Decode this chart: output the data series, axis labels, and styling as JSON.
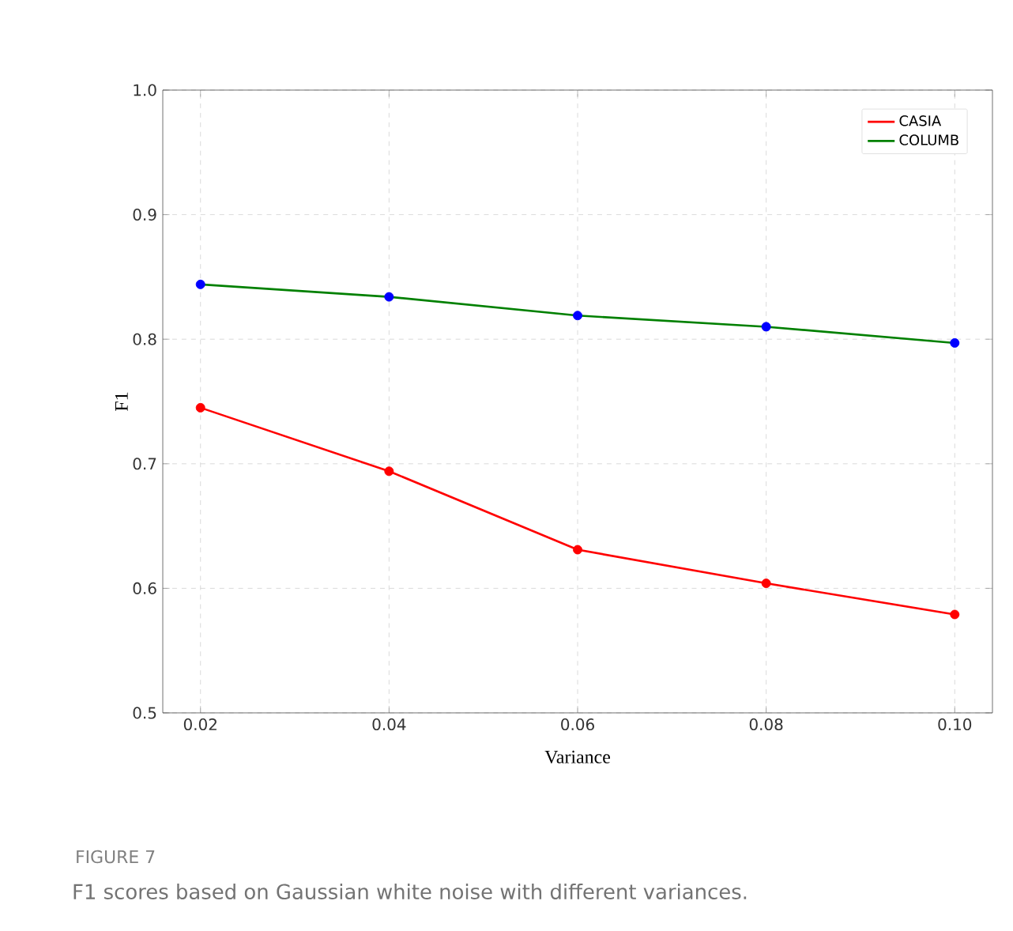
{
  "chart_data": {
    "type": "line",
    "xlabel": "Variance",
    "ylabel": "F1",
    "title": "FIGURE 7",
    "subtitle": "F1 scores based on Gaussian white noise with different variances.",
    "x": [
      0.02,
      0.04,
      0.06,
      0.08,
      0.1
    ],
    "series": [
      {
        "name": "CASIA",
        "color": "#ff0000",
        "values": [
          0.745,
          0.694,
          0.631,
          0.604,
          0.579
        ]
      },
      {
        "name": "COLUMB",
        "color": "#008000",
        "colors": [
          "#0000ff",
          "#0000ff",
          "#0000ff",
          "#0000ff",
          "#0000ff"
        ],
        "values": [
          0.844,
          0.834,
          0.819,
          0.81,
          0.797
        ]
      }
    ],
    "xlim": [
      0.016,
      0.104
    ],
    "ylim": [
      0.5,
      1.0
    ],
    "xticks": [
      0.02,
      0.04,
      0.06,
      0.08,
      {
        "value": 0.1,
        "label": "0.10"
      }
    ],
    "yticks": [
      0.5,
      0.6,
      0.7,
      0.8,
      0.9,
      {
        "value": 1.0,
        "label": "1.0"
      }
    ],
    "grid": true,
    "legend": "top right",
    "marker": "circle",
    "line_style": "solid"
  }
}
